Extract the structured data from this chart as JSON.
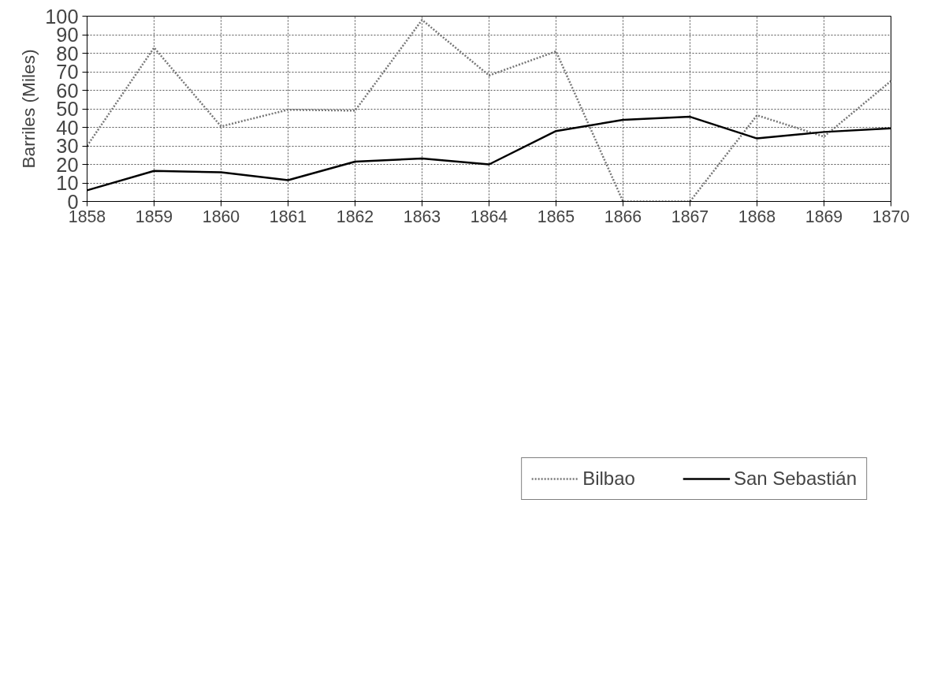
{
  "chart_data": {
    "type": "line",
    "ylabel": "Barriles (Miles)",
    "categories": [
      "1858",
      "1859",
      "1860",
      "1861",
      "1862",
      "1863",
      "1864",
      "1865",
      "1866",
      "1867",
      "1868",
      "1869",
      "1870"
    ],
    "series": [
      {
        "name": "Bilbao",
        "color": "#777777",
        "line_style": "dotted",
        "values": [
          30,
          83,
          40.5,
          49.5,
          49,
          98,
          68,
          81,
          0,
          0,
          46.5,
          35,
          65
        ]
      },
      {
        "name": "San Sebastián",
        "color": "#000000",
        "line_style": "solid",
        "values": [
          6,
          16.5,
          15.7,
          11.5,
          21.5,
          23.2,
          20,
          38,
          44,
          45.7,
          34,
          37.5,
          39.5
        ]
      }
    ],
    "ylim": [
      0,
      100
    ],
    "yticks": [
      0,
      10,
      20,
      30,
      40,
      50,
      60,
      70,
      80,
      90,
      100
    ],
    "grid": true,
    "legend": "bottom",
    "marker": "none"
  }
}
